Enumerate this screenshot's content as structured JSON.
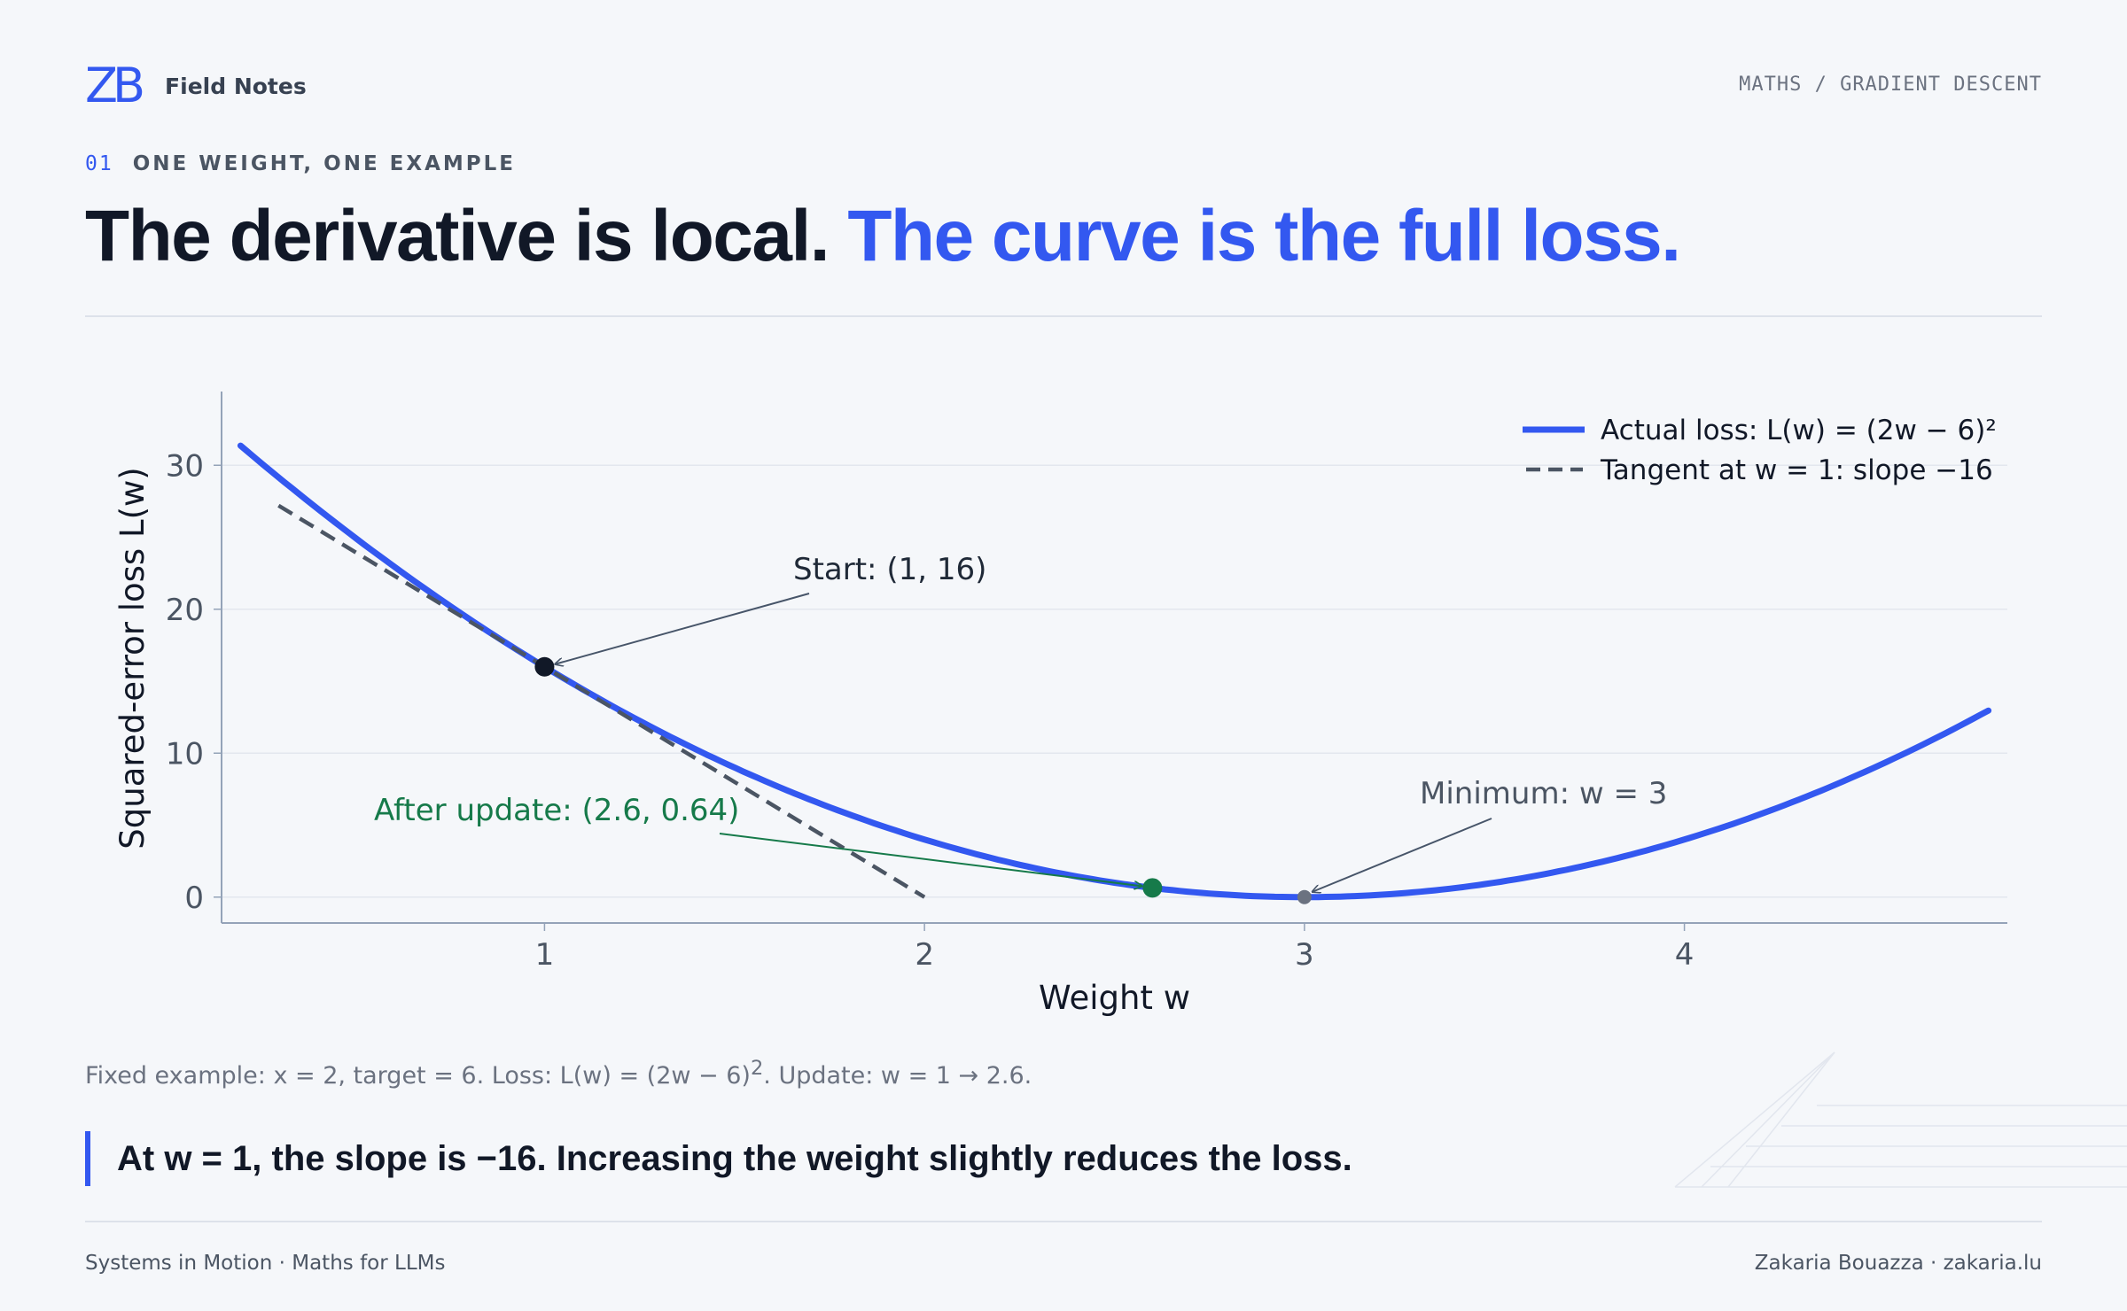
{
  "header": {
    "logo_text": "ZB",
    "brand_name": "Field Notes",
    "breadcrumb": "MATHS / GRADIENT DESCENT"
  },
  "eyebrow": {
    "number": "01",
    "text": "ONE WEIGHT, ONE EXAMPLE"
  },
  "headline": {
    "part_a": "The derivative is local.",
    "part_b": " The curve is the full loss."
  },
  "caption": {
    "before": "Fixed example: x = 2, target = 6. Loss: L(w) = (2w − 6)",
    "superscript": "2",
    "after": ". Update: w = 1 → 2.6."
  },
  "callout": "At w = 1, the slope is −16. Increasing the weight slightly reduces the loss.",
  "footer": {
    "left": "Systems in Motion · Maths for LLMs",
    "right": "Zakaria Bouazza · zakaria.lu"
  },
  "colors": {
    "accent": "#3358f0",
    "loss_curve": "#3358f0",
    "tangent": "#4b5563",
    "start_point": "#111827",
    "update_point": "#167a4a",
    "minimum_point": "#6b7280"
  },
  "chart_data": {
    "type": "line",
    "xlabel": "Weight w",
    "ylabel": "Squared-error loss L(w)",
    "xlim": [
      0.15,
      4.85
    ],
    "ylim": [
      -1.8,
      35
    ],
    "xticks": [
      1,
      2,
      3,
      4
    ],
    "yticks": [
      0,
      10,
      20,
      30
    ],
    "grid": "horizontal",
    "legend_position": "top-right",
    "series": [
      {
        "name": "Actual loss: L(w) = (2w − 6)²",
        "style": "solid",
        "x": [
          0.2,
          0.6,
          1.0,
          1.4,
          1.8,
          2.2,
          2.6,
          3.0,
          3.4,
          3.8,
          4.2,
          4.6,
          4.8
        ],
        "y": [
          31.36,
          23.04,
          16.0,
          10.24,
          5.76,
          2.56,
          0.64,
          0.0,
          0.64,
          2.56,
          5.76,
          10.24,
          12.96
        ]
      },
      {
        "name": "Tangent at w = 1: slope −16",
        "style": "dashed",
        "x": [
          0.3,
          2.0
        ],
        "y": [
          27.2,
          0.0
        ]
      }
    ],
    "points": [
      {
        "label": "Start: (1, 16)",
        "x": 1,
        "y": 16,
        "color": "#111827"
      },
      {
        "label": "After update: (2.6, 0.64)",
        "x": 2.6,
        "y": 0.64,
        "color": "#167a4a"
      },
      {
        "label": "Minimum: w = 3",
        "x": 3,
        "y": 0,
        "color": "#6b7280"
      }
    ]
  }
}
